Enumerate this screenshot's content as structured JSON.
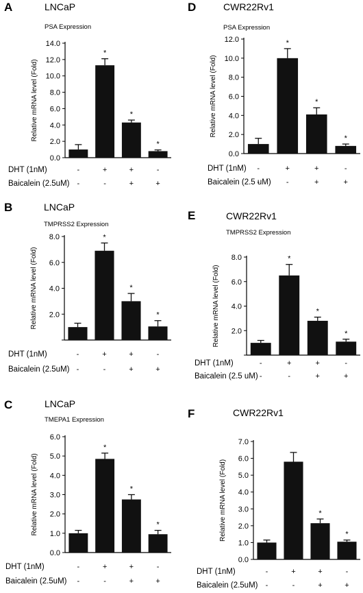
{
  "chart_data": [
    {
      "panel": "A",
      "cell_line": "LNCaP",
      "title": "PSA Expression",
      "type": "bar",
      "ylabel": "Relative mRNA level (Fold)",
      "ylim": [
        0,
        14
      ],
      "yticks": [
        "0.0",
        "2.0",
        "4.0",
        "6.0",
        "8.0",
        "10.0",
        "12.0",
        "14.0"
      ],
      "values": [
        1.0,
        11.3,
        4.3,
        0.8
      ],
      "errors": [
        0.6,
        0.8,
        0.3,
        0.15
      ],
      "significance": [
        "",
        "*",
        "*",
        "*"
      ],
      "treatments": [
        {
          "label": "DHT (1nM)",
          "signs": [
            "-",
            "+",
            "+",
            "-"
          ]
        },
        {
          "label": "Baicalein (2.5uM)",
          "signs": [
            "-",
            "-",
            "+",
            "+"
          ]
        }
      ]
    },
    {
      "panel": "D",
      "cell_line": "CWR22Rv1",
      "title": "PSA Expression",
      "type": "bar",
      "ylabel": "Relative mRNA level (Fold)",
      "ylim": [
        0,
        12
      ],
      "yticks": [
        "0.0",
        "2.0",
        "4.0",
        "6.0",
        "8.0",
        "10.0",
        "12.0"
      ],
      "values": [
        1.0,
        10.0,
        4.1,
        0.8
      ],
      "errors": [
        0.6,
        1.0,
        0.7,
        0.2
      ],
      "significance": [
        "",
        "*",
        "*",
        "*"
      ],
      "treatments": [
        {
          "label": "DHT (1nM)",
          "signs": [
            "-",
            "+",
            "+",
            "-"
          ]
        },
        {
          "label": "Baicalein (2.5 uM)",
          "signs": [
            "-",
            "-",
            "+",
            "+"
          ]
        }
      ]
    },
    {
      "panel": "B",
      "cell_line": "LNCaP",
      "title": "TMPRSS2 Expression",
      "type": "bar",
      "ylabel": "Relative mRNA level (Fold)",
      "ylim": [
        0,
        8
      ],
      "yticks": [
        "",
        "2.0",
        "4.0",
        "6.0",
        "8.0"
      ],
      "values": [
        1.0,
        6.9,
        3.0,
        1.05
      ],
      "errors": [
        0.3,
        0.6,
        0.6,
        0.45
      ],
      "significance": [
        "",
        "*",
        "*",
        "*"
      ],
      "treatments": [
        {
          "label": "DHT (1nM)",
          "signs": [
            "-",
            "+",
            "+",
            "-"
          ]
        },
        {
          "label": "Baicalein (2.5uM)",
          "signs": [
            "-",
            "-",
            "+",
            "+"
          ]
        }
      ]
    },
    {
      "panel": "E",
      "cell_line": "CWR22Rv1",
      "title": "TMPRSS2 Expression",
      "type": "bar",
      "ylabel": "Relative mRNA level (Fold)",
      "ylim": [
        0,
        8
      ],
      "yticks": [
        "",
        "2.0",
        "4.0",
        "6.0",
        "8.0"
      ],
      "values": [
        1.0,
        6.5,
        2.8,
        1.1
      ],
      "errors": [
        0.2,
        0.9,
        0.3,
        0.2
      ],
      "significance": [
        "",
        "*",
        "*",
        "*"
      ],
      "treatments": [
        {
          "label": "DHT (1nM)",
          "signs": [
            "-",
            "+",
            "+",
            "-"
          ]
        },
        {
          "label": "Baicalein (2.5 uM)",
          "signs": [
            "-",
            "-",
            "+",
            "+"
          ]
        }
      ]
    },
    {
      "panel": "C",
      "cell_line": "LNCaP",
      "title": "TMEPA1 Expression",
      "type": "bar",
      "ylabel": "Relative mRNA level (Fold)",
      "ylim": [
        0,
        6
      ],
      "yticks": [
        "0.0",
        "1.0",
        "2.0",
        "3.0",
        "4.0",
        "5.0",
        "6.0"
      ],
      "values": [
        1.0,
        4.85,
        2.75,
        0.95
      ],
      "errors": [
        0.15,
        0.3,
        0.25,
        0.2
      ],
      "significance": [
        "",
        "*",
        "*",
        "*"
      ],
      "treatments": [
        {
          "label": "DHT (1nM)",
          "signs": [
            "-",
            "+",
            "+",
            "-"
          ]
        },
        {
          "label": "Baicalein (2.5uM)",
          "signs": [
            "-",
            "-",
            "+",
            "+"
          ]
        }
      ]
    },
    {
      "panel": "F",
      "cell_line": "CWR22Rv1",
      "title": "",
      "type": "bar",
      "ylabel": "Relative mRNA level (Fold)",
      "ylim": [
        0,
        7
      ],
      "yticks": [
        "0.0",
        "1.0",
        "2.0",
        "3.0",
        "4.0",
        "5.0",
        "6.0",
        "7.0"
      ],
      "values": [
        1.0,
        5.8,
        2.15,
        1.05
      ],
      "errors": [
        0.15,
        0.55,
        0.25,
        0.1
      ],
      "significance": [
        "",
        "",
        "*",
        "*"
      ],
      "treatments": [
        {
          "label": "DHT (1nM)",
          "signs": [
            "-",
            "+",
            "+",
            "-"
          ]
        },
        {
          "label": "Baicalein (2.5uM)",
          "signs": [
            "-",
            "-",
            "+",
            "+"
          ]
        }
      ]
    }
  ],
  "colors": {
    "bar": "#111111",
    "axis": "#000000",
    "background": "#ffffff"
  }
}
